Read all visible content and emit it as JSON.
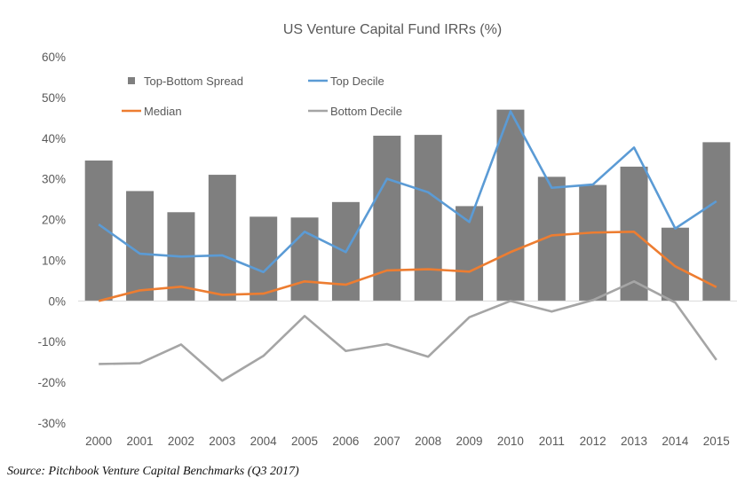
{
  "chart_data": {
    "type": "bar",
    "title": "US Venture Capital Fund IRRs (%)",
    "categories": [
      "2000",
      "2001",
      "2002",
      "2003",
      "2004",
      "2005",
      "2006",
      "2007",
      "2008",
      "2009",
      "2010",
      "2011",
      "2012",
      "2013",
      "2014",
      "2015"
    ],
    "ylim": [
      -30,
      60
    ],
    "yticks": [
      -30,
      -20,
      -10,
      0,
      10,
      20,
      30,
      40,
      50,
      60
    ],
    "ytick_labels": [
      "-30%",
      "-20%",
      "-10%",
      "0%",
      "10%",
      "20%",
      "30%",
      "40%",
      "50%",
      "60%"
    ],
    "grid": false,
    "legend_position": "top-left, inside plot",
    "series": [
      {
        "name": "Top-Bottom Spread",
        "kind": "bar",
        "color": "#7f7f7f",
        "values": [
          34.5,
          27.0,
          21.8,
          31.0,
          20.7,
          20.5,
          24.3,
          40.6,
          40.8,
          23.3,
          47.0,
          30.5,
          28.5,
          33.0,
          18.0,
          39.0
        ]
      },
      {
        "name": "Top Decile",
        "kind": "line",
        "color": "#5b9bd5",
        "values": [
          18.8,
          11.6,
          10.9,
          11.2,
          7.1,
          17.0,
          12.0,
          30.0,
          26.7,
          19.4,
          46.6,
          27.8,
          28.6,
          37.7,
          17.8,
          24.5
        ]
      },
      {
        "name": "Median",
        "kind": "line",
        "color": "#ed7d31",
        "values": [
          0.0,
          2.6,
          3.5,
          1.5,
          1.8,
          4.8,
          4.0,
          7.5,
          7.8,
          7.2,
          12.0,
          16.1,
          16.8,
          17.0,
          8.5,
          3.4
        ]
      },
      {
        "name": "Bottom Decile",
        "kind": "line",
        "color": "#a5a5a5",
        "values": [
          -15.5,
          -15.3,
          -10.7,
          -19.6,
          -13.5,
          -3.7,
          -12.3,
          -10.6,
          -13.7,
          -4.0,
          0.0,
          -2.6,
          0.2,
          4.8,
          -0.4,
          -14.5
        ]
      }
    ]
  },
  "source": "Source: Pitchbook Venture Capital Benchmarks (Q3 2017)"
}
